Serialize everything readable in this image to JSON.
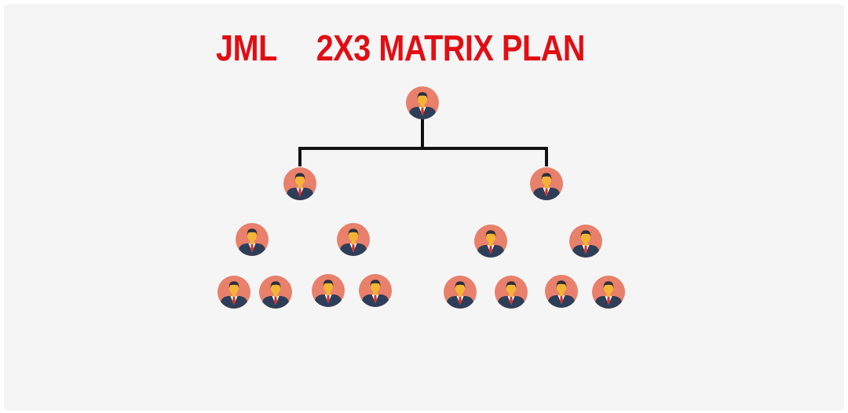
{
  "title": {
    "brand": "JML",
    "plan": "2X3 MATRIX PLAN"
  },
  "colors": {
    "title": "#e10e14",
    "background": "#f5f5f5",
    "connector": "#111111",
    "avatar_circle": "#e8806b",
    "avatar_skin": "#f3b436",
    "avatar_hair": "#2c2f3a",
    "avatar_suit": "#2f3e58",
    "avatar_shirt": "#ffffff",
    "avatar_tie": "#d9312b"
  },
  "tree": {
    "icon": "businessman-avatar-icon",
    "root": {
      "children": [
        {
          "children": [
            {
              "children": [
                {},
                {}
              ]
            },
            {
              "children": [
                {},
                {}
              ]
            }
          ]
        },
        {
          "children": [
            {
              "children": [
                {},
                {}
              ]
            },
            {
              "children": [
                {},
                {}
              ]
            }
          ]
        }
      ]
    }
  }
}
